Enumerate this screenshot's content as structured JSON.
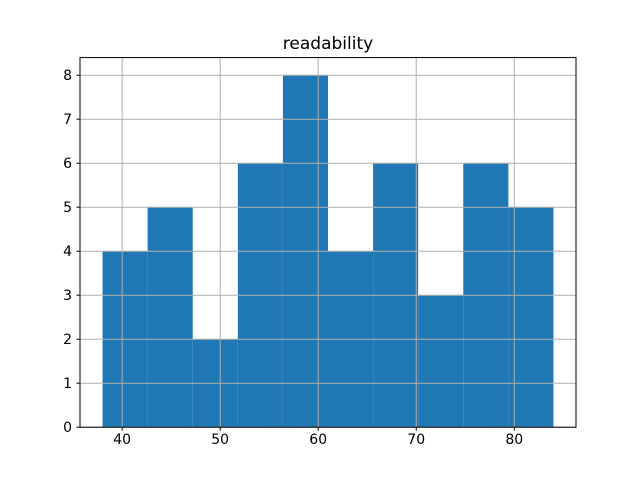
{
  "chart_data": {
    "type": "bar",
    "subtype": "histogram",
    "title": "readability",
    "xlabel": "",
    "ylabel": "",
    "bin_edges": [
      38.0,
      42.6,
      47.2,
      51.8,
      56.4,
      61.0,
      65.6,
      70.2,
      74.8,
      79.4,
      84.0
    ],
    "counts": [
      4,
      5,
      2,
      6,
      8,
      4,
      6,
      3,
      6,
      5
    ],
    "xticks": [
      40,
      50,
      60,
      70,
      80
    ],
    "yticks": [
      0,
      1,
      2,
      3,
      4,
      5,
      6,
      7,
      8
    ],
    "xlim": [
      35.7,
      86.3
    ],
    "ylim": [
      0,
      8.4
    ],
    "grid": true,
    "legend": "none",
    "bar_color": "#1f77b4",
    "grid_color": "#b0b0b0",
    "spine_color": "#000000",
    "text_color": "#000000",
    "background_color": "#ffffff"
  }
}
